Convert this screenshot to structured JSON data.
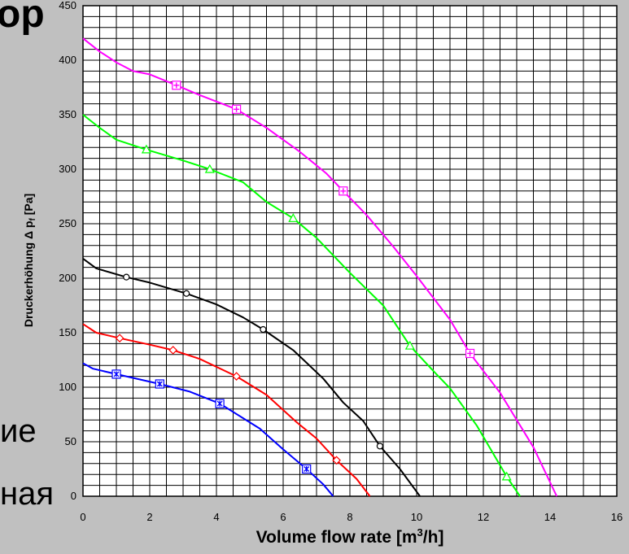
{
  "background_text": {
    "top": "ор",
    "middle": "ие",
    "bottom": "ная"
  },
  "colors": {
    "background": "#c0c0c0",
    "plot_area": "#ffffff",
    "grid": "#000000"
  },
  "chart_data": {
    "type": "line",
    "title": "",
    "xlabel_main": "Volume flow rate [m",
    "xlabel_sup": "3",
    "xlabel_end": "/h]",
    "ylabel_main": "Druckerhöhung Δ p",
    "ylabel_sub": "f",
    "ylabel_end": " [Pa]",
    "xlim": [
      0,
      16
    ],
    "ylim": [
      0,
      450
    ],
    "x_ticks": [
      "0",
      "2",
      "4",
      "6",
      "8",
      "10",
      "12",
      "14",
      "16"
    ],
    "y_ticks": [
      "0",
      "50",
      "100",
      "150",
      "200",
      "250",
      "300",
      "350",
      "400",
      "450"
    ],
    "grid": true,
    "legend": "none",
    "series": [
      {
        "color": "#ff00ff",
        "marker": "plus-square",
        "points": [
          [
            0,
            420
          ],
          [
            0.5,
            408
          ],
          [
            1,
            398
          ],
          [
            1.5,
            390
          ],
          [
            2,
            387
          ],
          [
            2.8,
            377
          ],
          [
            3.5,
            368
          ],
          [
            4.6,
            355
          ],
          [
            5.5,
            338
          ],
          [
            6.5,
            316
          ],
          [
            7.3,
            296
          ],
          [
            7.8,
            280
          ],
          [
            8.5,
            258
          ],
          [
            9.3,
            229
          ],
          [
            10,
            202
          ],
          [
            11,
            162
          ],
          [
            11.6,
            131
          ],
          [
            12.5,
            95
          ],
          [
            13.5,
            45
          ],
          [
            14.2,
            0
          ]
        ],
        "marker_points": [
          [
            2.8,
            377
          ],
          [
            4.6,
            355
          ],
          [
            7.8,
            280
          ],
          [
            11.6,
            131
          ]
        ]
      },
      {
        "color": "#00ff00",
        "marker": "triangle",
        "points": [
          [
            0,
            350
          ],
          [
            0.5,
            338
          ],
          [
            1,
            327
          ],
          [
            1.9,
            318
          ],
          [
            3,
            308
          ],
          [
            3.8,
            300
          ],
          [
            4.8,
            288
          ],
          [
            5.5,
            270
          ],
          [
            6.3,
            255
          ],
          [
            7,
            237
          ],
          [
            8,
            205
          ],
          [
            9,
            175
          ],
          [
            9.8,
            138
          ],
          [
            10.5,
            115
          ],
          [
            11,
            99
          ],
          [
            11.8,
            65
          ],
          [
            12.7,
            18
          ],
          [
            13.1,
            0
          ]
        ],
        "marker_points": [
          [
            1.9,
            318
          ],
          [
            3.8,
            300
          ],
          [
            6.3,
            255
          ],
          [
            9.8,
            138
          ],
          [
            12.7,
            18
          ]
        ]
      },
      {
        "color": "#000000",
        "marker": "circle",
        "points": [
          [
            0,
            218
          ],
          [
            0.4,
            209
          ],
          [
            1.3,
            201
          ],
          [
            2,
            196
          ],
          [
            3.1,
            186
          ],
          [
            4,
            176
          ],
          [
            4.8,
            164
          ],
          [
            5.4,
            153
          ],
          [
            6.3,
            134
          ],
          [
            7.2,
            108
          ],
          [
            7.8,
            86
          ],
          [
            8.4,
            69
          ],
          [
            8.9,
            46
          ],
          [
            9.5,
            25
          ],
          [
            10.1,
            0
          ]
        ],
        "marker_points": [
          [
            1.3,
            201
          ],
          [
            3.1,
            186
          ],
          [
            5.4,
            153
          ],
          [
            8.9,
            46
          ]
        ]
      },
      {
        "color": "#ff0000",
        "marker": "diamond",
        "points": [
          [
            0,
            158
          ],
          [
            0.4,
            150
          ],
          [
            1.1,
            145
          ],
          [
            2,
            139
          ],
          [
            2.7,
            134
          ],
          [
            3.5,
            126
          ],
          [
            4.6,
            110
          ],
          [
            5.5,
            93
          ],
          [
            6.4,
            68
          ],
          [
            7,
            53
          ],
          [
            7.6,
            33
          ],
          [
            8.2,
            16
          ],
          [
            8.6,
            0
          ]
        ],
        "marker_points": [
          [
            1.1,
            145
          ],
          [
            2.7,
            134
          ],
          [
            4.6,
            110
          ],
          [
            7.6,
            33
          ]
        ]
      },
      {
        "color": "#0000ff",
        "marker": "star",
        "points": [
          [
            0,
            122
          ],
          [
            0.3,
            117
          ],
          [
            1,
            112
          ],
          [
            2.3,
            103
          ],
          [
            3.2,
            96
          ],
          [
            4.1,
            85
          ],
          [
            5.3,
            62
          ],
          [
            6,
            43
          ],
          [
            6.7,
            25
          ],
          [
            7.2,
            11
          ],
          [
            7.5,
            0
          ]
        ],
        "marker_points": [
          [
            1,
            112
          ],
          [
            2.3,
            103
          ],
          [
            4.1,
            85
          ],
          [
            6.7,
            25
          ]
        ]
      }
    ]
  }
}
